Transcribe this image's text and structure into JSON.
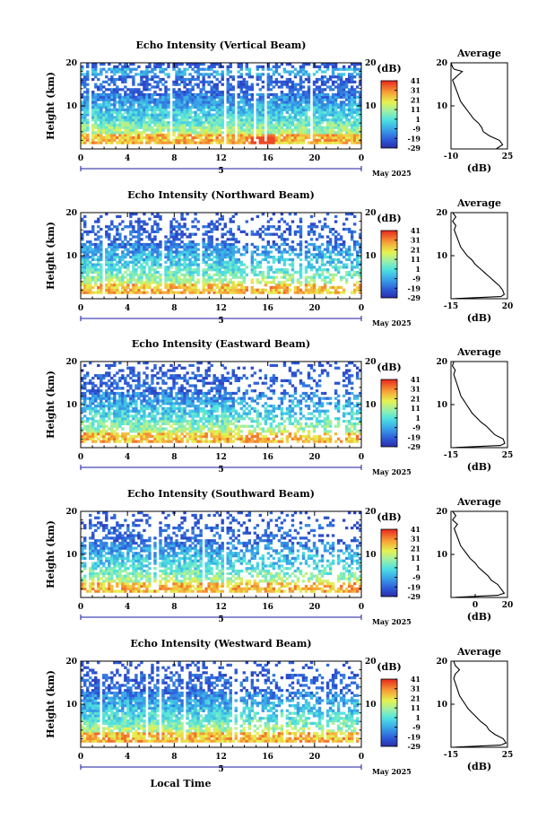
{
  "chart_data": [
    {
      "type": "heatmap",
      "title": "Echo Intensity (Vertical Beam)",
      "ylabel": "Height (km)",
      "yticks": [
        "10",
        "20"
      ],
      "ylim": [
        0,
        20
      ],
      "xticks": [
        "0",
        "4",
        "8",
        "12",
        "16",
        "20",
        "0"
      ],
      "xlim": [
        0,
        24
      ],
      "date_marker": "5",
      "date_label": "May 2025",
      "colorbar": {
        "unit": "(dB)",
        "ticks": [
          "41",
          "31",
          "21",
          "11",
          "1",
          "-9",
          "-19",
          "-29"
        ],
        "range": [
          -29,
          41
        ]
      },
      "average": {
        "title": "Average",
        "unit": "(dB)",
        "xticks": [
          "-10",
          "25"
        ],
        "xlim": [
          -10,
          25
        ],
        "yticks": [
          "10",
          "20"
        ]
      },
      "profile": [
        [
          0,
          18
        ],
        [
          1,
          22
        ],
        [
          2,
          20
        ],
        [
          3,
          14
        ],
        [
          4,
          10
        ],
        [
          5,
          9
        ],
        [
          6,
          7
        ],
        [
          7,
          4
        ],
        [
          8,
          2
        ],
        [
          9,
          0
        ],
        [
          10,
          -2
        ],
        [
          11,
          -4
        ],
        [
          12,
          -5
        ],
        [
          13,
          -6
        ],
        [
          14,
          -7
        ],
        [
          15,
          -8
        ],
        [
          16,
          -9
        ],
        [
          17,
          -6
        ],
        [
          18,
          -3
        ],
        [
          18.5,
          -8
        ],
        [
          19,
          -9
        ],
        [
          20,
          -10
        ]
      ],
      "strength": 1.0
    },
    {
      "type": "heatmap",
      "title": "Echo Intensity (Northward Beam)",
      "ylabel": "Height (km)",
      "yticks": [
        "10",
        "20"
      ],
      "ylim": [
        0,
        20
      ],
      "xticks": [
        "0",
        "4",
        "8",
        "12",
        "16",
        "20",
        "0"
      ],
      "xlim": [
        0,
        24
      ],
      "date_marker": "5",
      "date_label": "May 2025",
      "colorbar": {
        "unit": "(dB)",
        "ticks": [
          "41",
          "31",
          "21",
          "11",
          "1",
          "-9",
          "-19",
          "-29"
        ],
        "range": [
          -29,
          41
        ]
      },
      "average": {
        "title": "Average",
        "unit": "(dB)",
        "xticks": [
          "-15",
          "20"
        ],
        "xlim": [
          -15,
          20
        ],
        "yticks": [
          "10",
          "20"
        ]
      },
      "profile": [
        [
          0,
          -14
        ],
        [
          0.5,
          16
        ],
        [
          1,
          18
        ],
        [
          2,
          17
        ],
        [
          3,
          15
        ],
        [
          4,
          12
        ],
        [
          5,
          9
        ],
        [
          6,
          6
        ],
        [
          7,
          3
        ],
        [
          8,
          0
        ],
        [
          9,
          -2
        ],
        [
          10,
          -5
        ],
        [
          11,
          -7
        ],
        [
          12,
          -9
        ],
        [
          13,
          -10
        ],
        [
          14,
          -11
        ],
        [
          15,
          -12
        ],
        [
          16,
          -13
        ],
        [
          17,
          -12
        ],
        [
          18,
          -14
        ],
        [
          19,
          -12
        ],
        [
          20,
          -14
        ]
      ],
      "strength": 0.75
    },
    {
      "type": "heatmap",
      "title": "Echo Intensity (Eastward Beam)",
      "ylabel": "Height (km)",
      "yticks": [
        "10",
        "20"
      ],
      "ylim": [
        0,
        20
      ],
      "xticks": [
        "0",
        "4",
        "8",
        "12",
        "16",
        "20",
        "0"
      ],
      "xlim": [
        0,
        24
      ],
      "date_marker": "5",
      "date_label": "May 2025",
      "colorbar": {
        "unit": "(dB)",
        "ticks": [
          "41",
          "31",
          "21",
          "11",
          "1",
          "-9",
          "-19",
          "-29"
        ],
        "range": [
          -29,
          41
        ]
      },
      "average": {
        "title": "Average",
        "unit": "(dB)",
        "xticks": [
          "-15",
          "25"
        ],
        "xlim": [
          -15,
          25
        ],
        "yticks": [
          "10",
          "20"
        ]
      },
      "profile": [
        [
          0,
          -14
        ],
        [
          0.5,
          20
        ],
        [
          1,
          23
        ],
        [
          2,
          22
        ],
        [
          3,
          16
        ],
        [
          4,
          13
        ],
        [
          5,
          10
        ],
        [
          6,
          6
        ],
        [
          7,
          3
        ],
        [
          8,
          0
        ],
        [
          9,
          -2
        ],
        [
          10,
          -4
        ],
        [
          11,
          -6
        ],
        [
          12,
          -8
        ],
        [
          13,
          -9
        ],
        [
          14,
          -10
        ],
        [
          15,
          -11
        ],
        [
          16,
          -12
        ],
        [
          17,
          -13
        ],
        [
          18,
          -12
        ],
        [
          19,
          -14
        ],
        [
          20,
          -13
        ]
      ],
      "strength": 0.7
    },
    {
      "type": "heatmap",
      "title": "Echo Intensity (Southward Beam)",
      "ylabel": "Height (km)",
      "yticks": [
        "10",
        "20"
      ],
      "ylim": [
        0,
        20
      ],
      "xticks": [
        "0",
        "4",
        "8",
        "12",
        "16",
        "20",
        "0"
      ],
      "xlim": [
        0,
        24
      ],
      "date_marker": "5",
      "date_label": "May 2025",
      "colorbar": {
        "unit": "(dB)",
        "ticks": [
          "41",
          "31",
          "21",
          "11",
          "1",
          "-9",
          "-19",
          "-29"
        ],
        "range": [
          -29,
          41
        ]
      },
      "average": {
        "title": "Average",
        "unit": "(dB)",
        "xticks": [
          "0",
          "20"
        ],
        "xlim": [
          -15,
          20
        ],
        "yticks": [
          "10",
          "20"
        ]
      },
      "profile": [
        [
          0,
          -14
        ],
        [
          0.5,
          14
        ],
        [
          1,
          18
        ],
        [
          2,
          16
        ],
        [
          3,
          14
        ],
        [
          4,
          10
        ],
        [
          5,
          8
        ],
        [
          6,
          5
        ],
        [
          7,
          2
        ],
        [
          8,
          0
        ],
        [
          9,
          -3
        ],
        [
          10,
          -5
        ],
        [
          11,
          -7
        ],
        [
          12,
          -9
        ],
        [
          13,
          -10
        ],
        [
          14,
          -11
        ],
        [
          15,
          -12
        ],
        [
          16,
          -13
        ],
        [
          17,
          -11
        ],
        [
          18,
          -14
        ],
        [
          19,
          -12
        ],
        [
          20,
          -14
        ]
      ],
      "strength": 0.6
    },
    {
      "type": "heatmap",
      "title": "Echo Intensity (Westward Beam)",
      "ylabel": "Height (km)",
      "yticks": [
        "10",
        "20"
      ],
      "ylim": [
        0,
        20
      ],
      "xticks": [
        "0",
        "4",
        "8",
        "12",
        "16",
        "20",
        "0"
      ],
      "xlim": [
        0,
        24
      ],
      "xlabel": "Local Time",
      "date_marker": "5",
      "date_label": "May 2025",
      "colorbar": {
        "unit": "(dB)",
        "ticks": [
          "41",
          "31",
          "21",
          "11",
          "1",
          "-9",
          "-19",
          "-29"
        ],
        "range": [
          -29,
          41
        ]
      },
      "average": {
        "title": "Average",
        "unit": "(dB)",
        "xticks": [
          "-15",
          "25"
        ],
        "xlim": [
          -15,
          25
        ],
        "yticks": [
          "10",
          "20"
        ]
      },
      "profile": [
        [
          0,
          -14
        ],
        [
          0.5,
          20
        ],
        [
          1,
          24
        ],
        [
          2,
          22
        ],
        [
          3,
          16
        ],
        [
          4,
          12
        ],
        [
          5,
          10
        ],
        [
          6,
          6
        ],
        [
          7,
          3
        ],
        [
          8,
          0
        ],
        [
          9,
          -3
        ],
        [
          10,
          -5
        ],
        [
          11,
          -7
        ],
        [
          12,
          -9
        ],
        [
          13,
          -10
        ],
        [
          14,
          -11
        ],
        [
          15,
          -12
        ],
        [
          16,
          -13
        ],
        [
          17,
          -12
        ],
        [
          18,
          -9
        ],
        [
          19,
          -12
        ],
        [
          20,
          -13
        ]
      ],
      "strength": 0.95
    }
  ]
}
